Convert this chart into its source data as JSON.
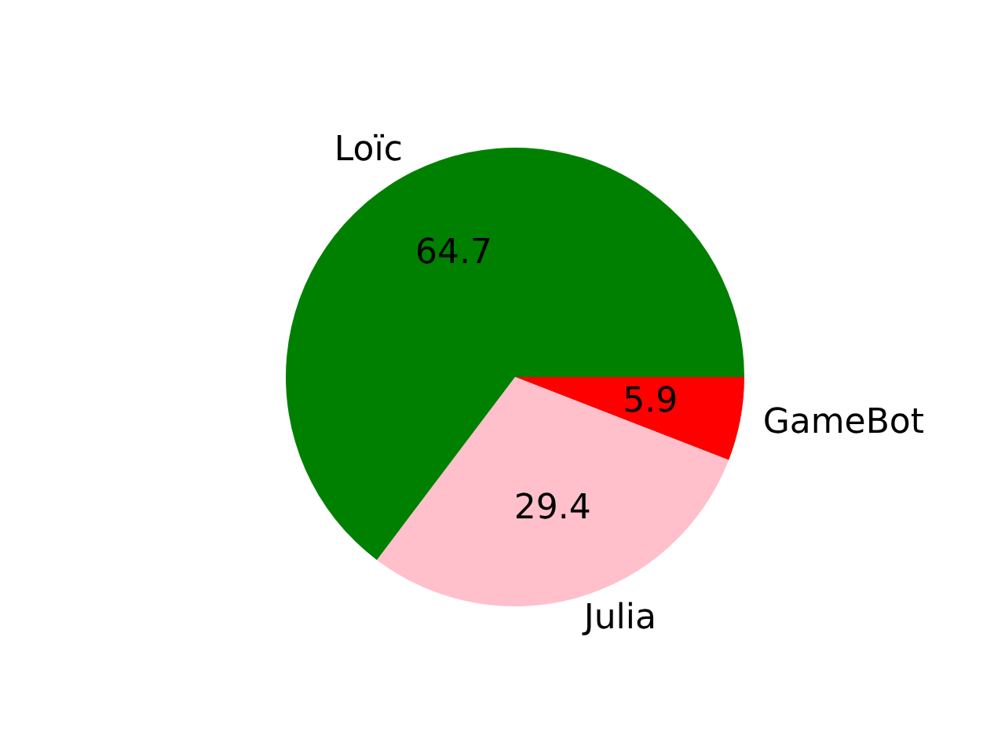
{
  "chart_data": {
    "type": "pie",
    "categories": [
      "Loïc",
      "Julia",
      "GameBot"
    ],
    "values": [
      64.7,
      29.4,
      5.9
    ],
    "colors": [
      "#008000",
      "#ffc0cb",
      "#ff0000"
    ],
    "data_labels": true,
    "legend": false
  }
}
